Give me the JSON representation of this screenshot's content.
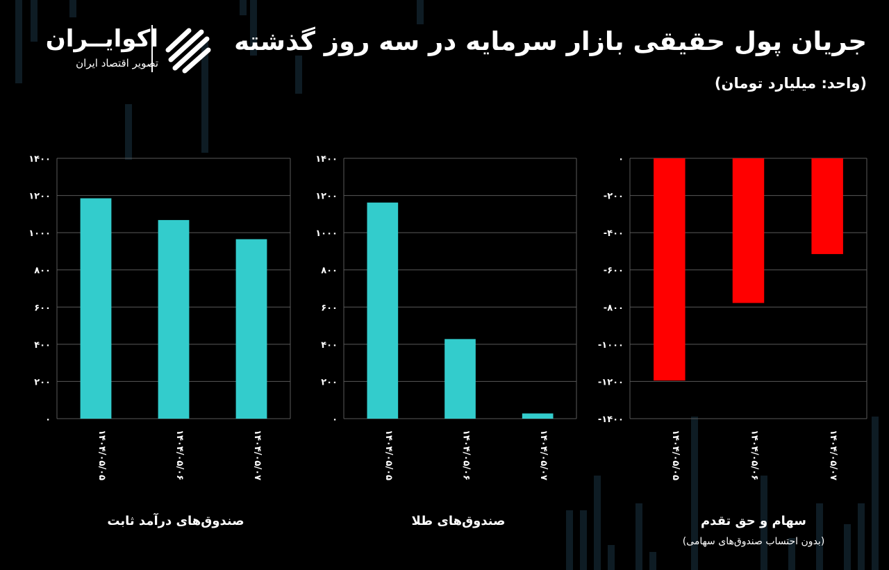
{
  "header": {
    "title": "جریان پول حقیقی بازار سرمایه در سه روز گذشته",
    "unit": "(واحد: میلیارد تومان)"
  },
  "logo": {
    "name": "اکوایــران",
    "tagline": "تصویر اقتصاد ایران",
    "icon": "ekoiran-logo-mark"
  },
  "colors": {
    "positive_bar": "#33cccc",
    "negative_bar": "#ff0000",
    "background": "#000000",
    "grid": "#5a5a5a",
    "text": "#ffffff"
  },
  "chart_data": [
    {
      "type": "bar",
      "title": "صندوق‌های درآمد ثابت",
      "categories": [
        "۱۴۰۴/۰۵/۰۵",
        "۱۴۰۴/۰۵/۰۶",
        "۱۴۰۴/۰۵/۰۷"
      ],
      "values": [
        1185,
        1068,
        965
      ],
      "ylim": [
        0,
        1400
      ],
      "yticks": [
        0,
        200,
        400,
        600,
        800,
        1000,
        1200,
        1400
      ],
      "ytick_labels": [
        "۰",
        "۲۰۰",
        "۴۰۰",
        "۶۰۰",
        "۸۰۰",
        "۱۰۰۰",
        "۱۲۰۰",
        "۱۴۰۰"
      ],
      "color": "#33cccc",
      "grid": true
    },
    {
      "type": "bar",
      "title": "صندوق‌های طلا",
      "categories": [
        "۱۴۰۴/۰۵/۰۵",
        "۱۴۰۴/۰۵/۰۶",
        "۱۴۰۴/۰۵/۰۷"
      ],
      "values": [
        1162,
        428,
        28
      ],
      "ylim": [
        0,
        1400
      ],
      "yticks": [
        0,
        200,
        400,
        600,
        800,
        1000,
        1200,
        1400
      ],
      "ytick_labels": [
        "۰",
        "۲۰۰",
        "۴۰۰",
        "۶۰۰",
        "۸۰۰",
        "۱۰۰۰",
        "۱۲۰۰",
        "۱۴۰۰"
      ],
      "color": "#33cccc",
      "grid": true
    },
    {
      "type": "bar",
      "title": "سهام و حق تقدم",
      "note": "(بدون احتساب صندوق‌های سهامی)",
      "categories": [
        "۱۴۰۴/۰۵/۰۵",
        "۱۴۰۴/۰۵/۰۶",
        "۱۴۰۴/۰۵/۰۷"
      ],
      "values": [
        -1195,
        -778,
        -515
      ],
      "ylim": [
        -1400,
        0
      ],
      "yticks": [
        0,
        -200,
        -400,
        -600,
        -800,
        -1000,
        -1200,
        -1400
      ],
      "ytick_labels": [
        "۰",
        "-۲۰۰",
        "-۴۰۰",
        "-۶۰۰",
        "-۸۰۰",
        "-۱۰۰۰",
        "-۱۲۰۰",
        "-۱۴۰۰"
      ],
      "color": "#ff0000",
      "grid": true
    }
  ]
}
